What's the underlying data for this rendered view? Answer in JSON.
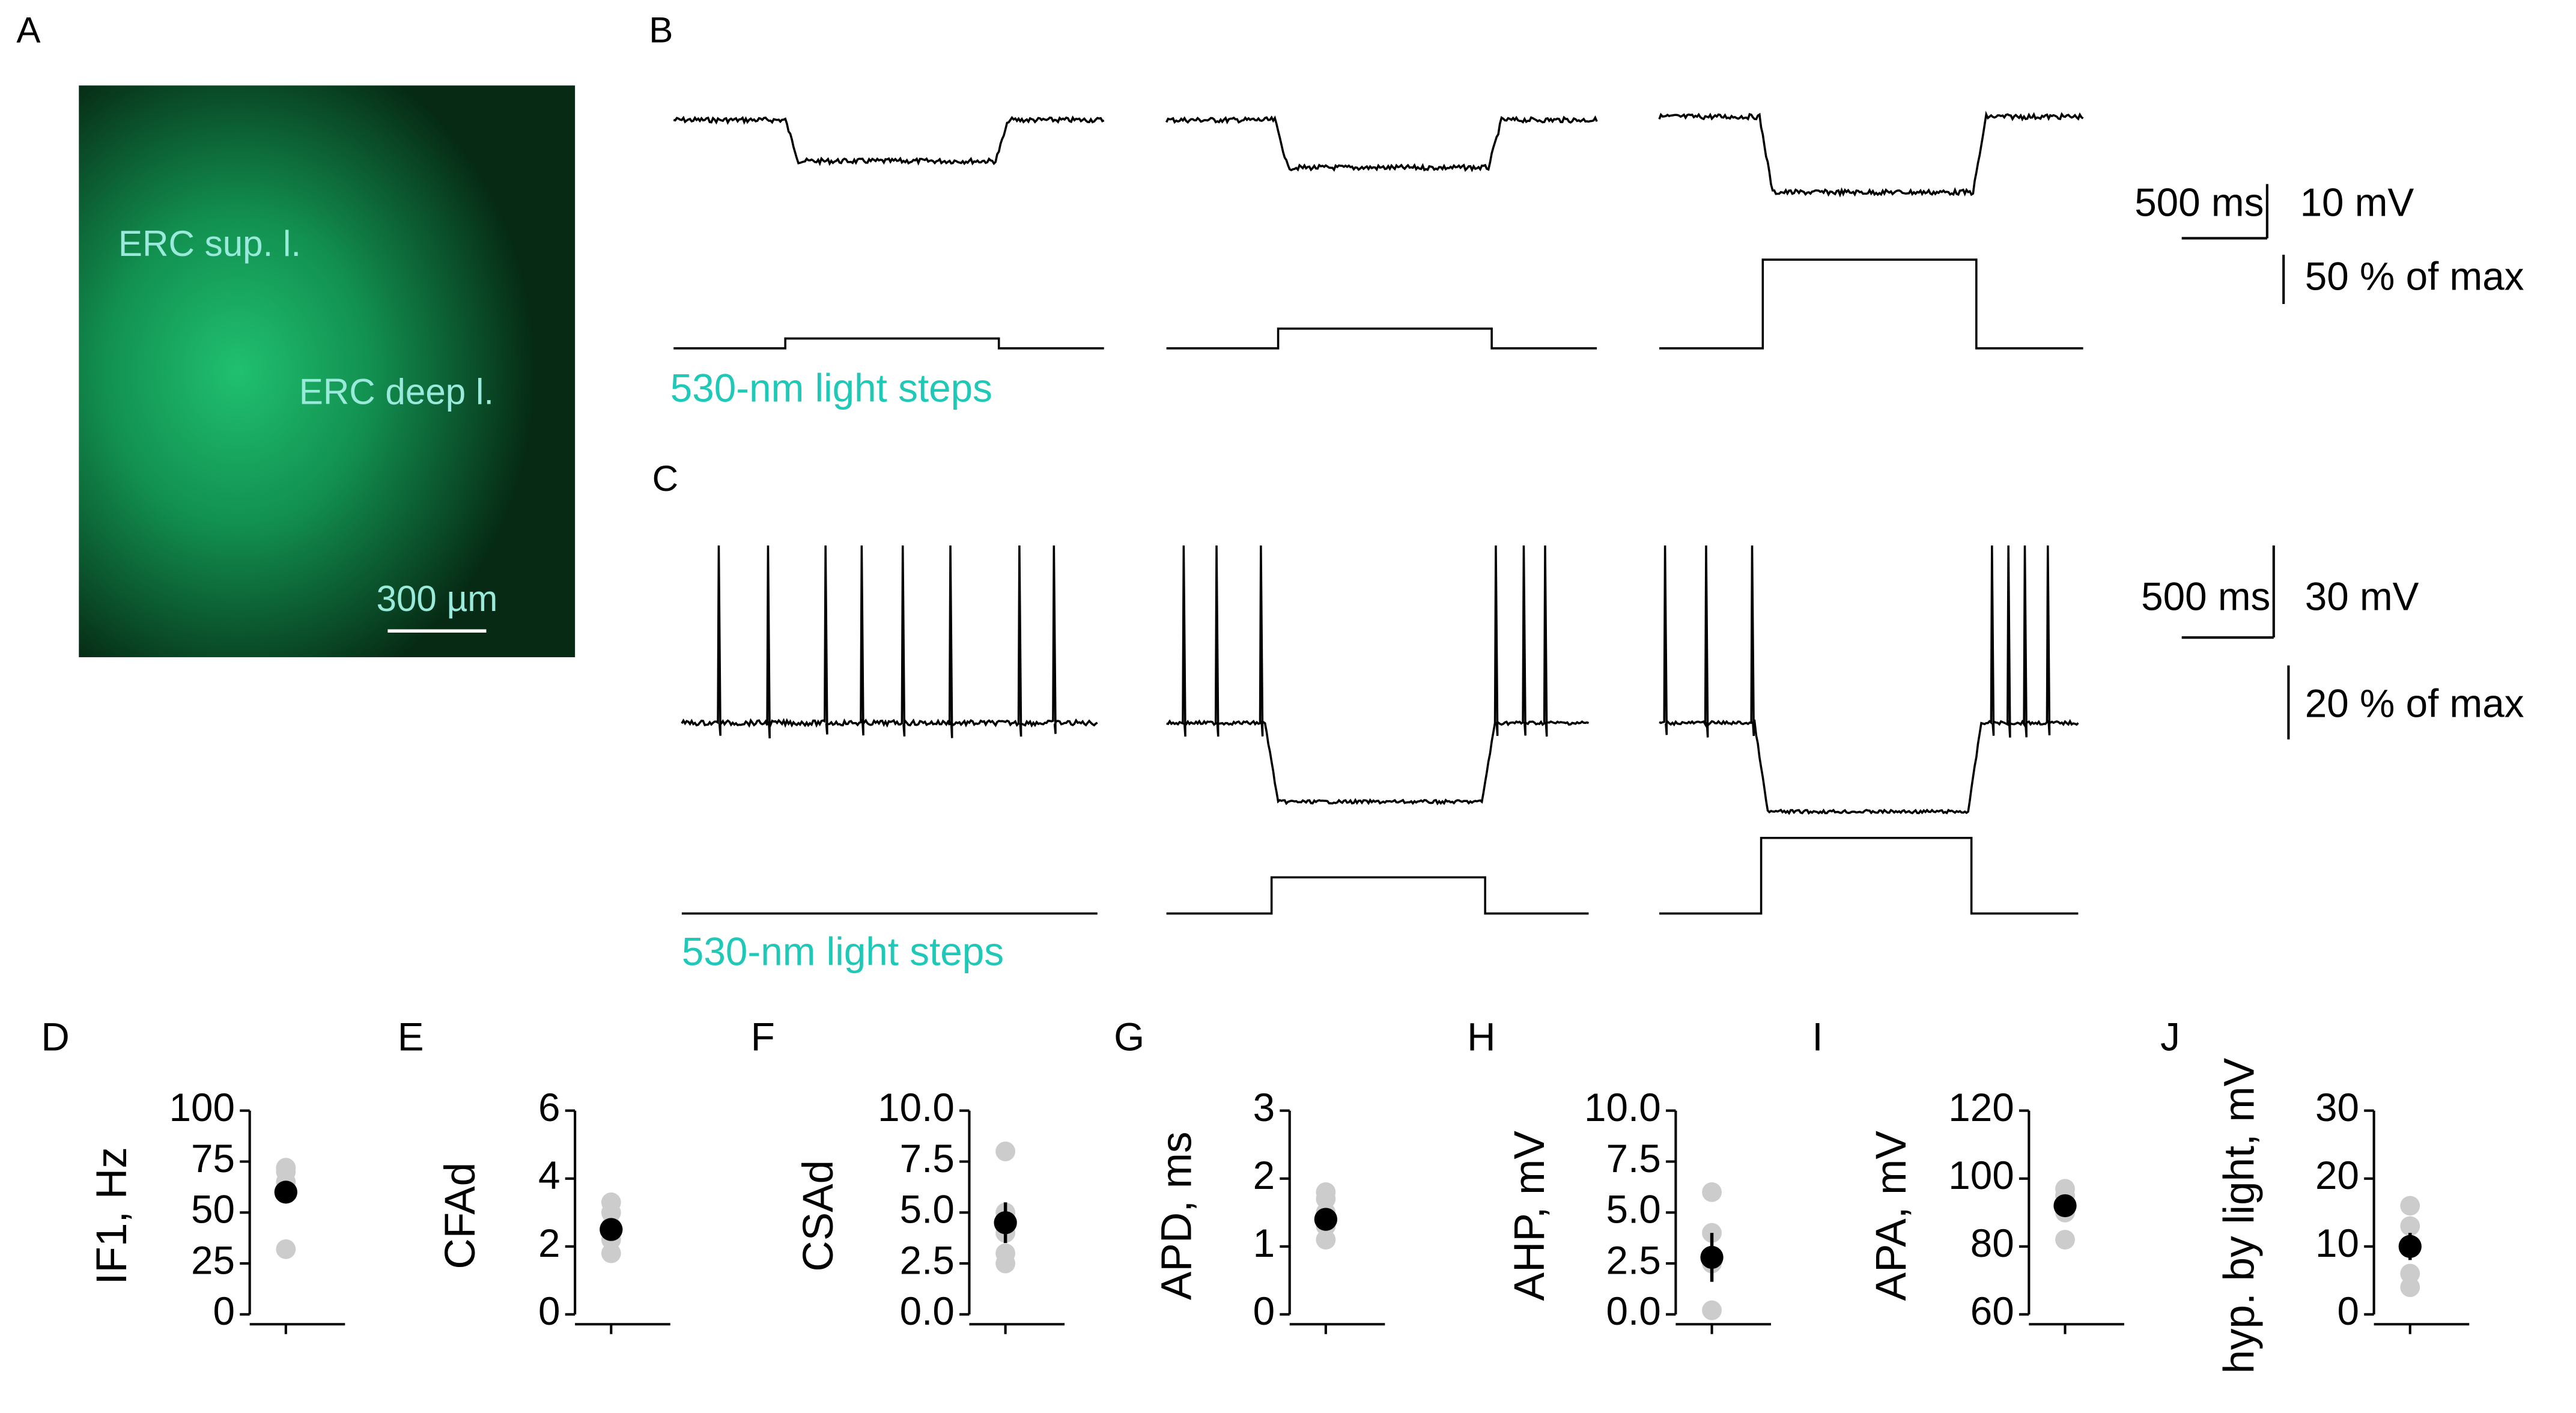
{
  "panel_A": {
    "letter": "A",
    "labels": [
      "ERC sup. l.",
      "ERC deep l."
    ],
    "scale_bar": "300 µm"
  },
  "panel_B": {
    "letter": "B",
    "time_scale": "500 ms",
    "voltage_scale": "10 mV",
    "light_scale": "50 % of max",
    "stimulus": "530-nm light steps"
  },
  "panel_C": {
    "letter": "C",
    "time_scale": "500 ms",
    "voltage_scale": "30 mV",
    "light_scale": "20 % of max",
    "stimulus": "530-nm light steps"
  },
  "chart_data": [
    {
      "type": "strip",
      "panel": "D",
      "ylabel": "IF1, Hz",
      "ylim": [
        0,
        100
      ],
      "yticks": [
        0,
        25,
        50,
        75,
        100
      ],
      "values": [
        32,
        60,
        65,
        70,
        72
      ],
      "mean": 60,
      "error": 5,
      "color": "#cccccc",
      "mean_color": "#000000"
    },
    {
      "type": "strip",
      "panel": "E",
      "ylabel": "CFAd",
      "ylim": [
        0,
        6
      ],
      "yticks": [
        0,
        2,
        4,
        6
      ],
      "values": [
        1.8,
        2.2,
        2.6,
        3.0,
        3.3
      ],
      "mean": 2.5,
      "error": 0.3,
      "color": "#cccccc",
      "mean_color": "#000000"
    },
    {
      "type": "strip",
      "panel": "F",
      "ylabel": "CSAd",
      "ylim": [
        0,
        10
      ],
      "yticks": [
        {
          "value": 0,
          "label": "0.0"
        },
        {
          "value": 2.5,
          "label": "2.5"
        },
        {
          "value": 5,
          "label": "5.0"
        },
        {
          "value": 7.5,
          "label": "7.5"
        },
        {
          "value": 10,
          "label": "10.0"
        }
      ],
      "values": [
        2.5,
        3,
        4,
        5,
        8
      ],
      "mean": 4.5,
      "error": 1,
      "color": "#cccccc",
      "mean_color": "#000000"
    },
    {
      "type": "strip",
      "panel": "G",
      "ylabel": "APD, ms",
      "ylim": [
        0,
        3
      ],
      "yticks": [
        0,
        1,
        2,
        3
      ],
      "values": [
        1.1,
        1.3,
        1.5,
        1.7,
        1.8
      ],
      "mean": 1.4,
      "error": 0.1,
      "color": "#cccccc",
      "mean_color": "#000000"
    },
    {
      "type": "strip",
      "panel": "H",
      "ylabel": "AHP, mV",
      "ylim": [
        0,
        10
      ],
      "yticks": [
        {
          "value": 0,
          "label": "0.0"
        },
        {
          "value": 2.5,
          "label": "2.5"
        },
        {
          "value": 5,
          "label": "5.0"
        },
        {
          "value": 7.5,
          "label": "7.5"
        },
        {
          "value": 10,
          "label": "10.0"
        }
      ],
      "values": [
        0.2,
        2.5,
        4,
        6
      ],
      "mean": 2.8,
      "error": 1.2,
      "color": "#cccccc",
      "mean_color": "#000000"
    },
    {
      "type": "strip",
      "panel": "I",
      "ylabel": "APA, mV",
      "ylim": [
        60,
        120
      ],
      "yticks": [
        60,
        80,
        100,
        120
      ],
      "values": [
        82,
        90,
        95,
        97
      ],
      "mean": 92,
      "error": 3,
      "color": "#cccccc",
      "mean_color": "#000000"
    },
    {
      "type": "strip",
      "panel": "J",
      "ylabel": "hyp. by light, mV",
      "ylim": [
        0,
        30
      ],
      "yticks": [
        0,
        10,
        20,
        30
      ],
      "values": [
        4,
        6,
        10,
        13,
        16
      ],
      "mean": 10,
      "error": 2,
      "color": "#cccccc",
      "mean_color": "#000000"
    }
  ]
}
